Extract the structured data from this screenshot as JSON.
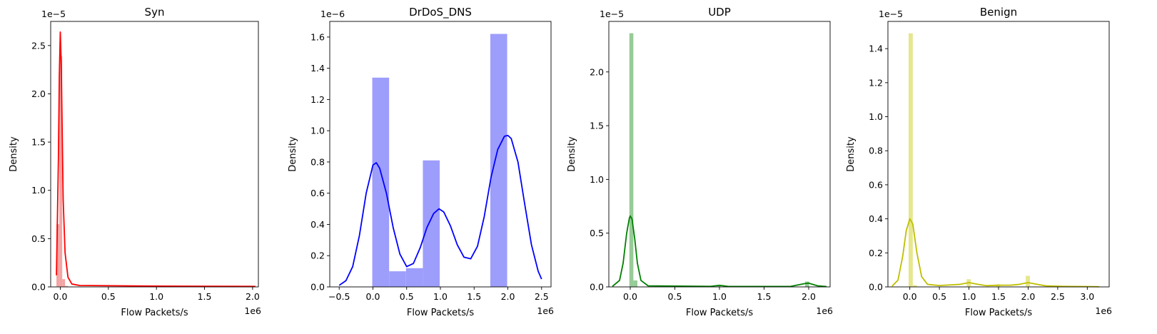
{
  "chart_data": [
    {
      "type": "histogram",
      "title": "Syn",
      "xlabel": "Flow Packets/s",
      "ylabel": "Density",
      "x_offset_label": "1e6",
      "y_offset_label": "1e−5",
      "xlim": [
        -0.1,
        2.06
      ],
      "ylim": [
        0,
        2.75
      ],
      "xticks": [
        0.0,
        0.5,
        1.0,
        1.5,
        2.0
      ],
      "xtick_labels": [
        "0.0",
        "0.5",
        "1.0",
        "1.5",
        "2.0"
      ],
      "yticks": [
        0.0,
        0.5,
        1.0,
        1.5,
        2.0,
        2.5
      ],
      "ytick_labels": [
        "0.0",
        "0.5",
        "1.0",
        "1.5",
        "2.0",
        "2.5"
      ],
      "color": "#ff0000",
      "bar_color": "#f4a3a3",
      "bins": [
        {
          "x0": -0.04,
          "x1": -0.01,
          "value": 0.65
        },
        {
          "x0": -0.01,
          "x1": 0.02,
          "value": 2.39
        },
        {
          "x0": 0.02,
          "x1": 0.05,
          "value": 0.08
        },
        {
          "x0": 0.05,
          "x1": 0.08,
          "value": 0.01
        }
      ],
      "kde": [
        [
          -0.04,
          0.12
        ],
        [
          -0.02,
          1.3
        ],
        [
          -0.01,
          2.2
        ],
        [
          0.0,
          2.64
        ],
        [
          0.01,
          2.3
        ],
        [
          0.02,
          1.6
        ],
        [
          0.03,
          0.9
        ],
        [
          0.05,
          0.35
        ],
        [
          0.08,
          0.1
        ],
        [
          0.12,
          0.03
        ],
        [
          0.2,
          0.015
        ],
        [
          1.0,
          0.008
        ],
        [
          2.0,
          0.005
        ],
        [
          2.03,
          0.004
        ]
      ]
    },
    {
      "type": "histogram",
      "title": "DrDoS_DNS",
      "xlabel": "Flow Packets/s",
      "ylabel": "Density",
      "x_offset_label": "1e6",
      "y_offset_label": "1e−6",
      "xlim": [
        -0.64,
        2.64
      ],
      "ylim": [
        0,
        1.7
      ],
      "xticks": [
        -0.5,
        0.0,
        0.5,
        1.0,
        1.5,
        2.0,
        2.5
      ],
      "xtick_labels": [
        "−0.5",
        "0.0",
        "0.5",
        "1.0",
        "1.5",
        "2.0",
        "2.5"
      ],
      "yticks": [
        0.0,
        0.2,
        0.4,
        0.6,
        0.8,
        1.0,
        1.2,
        1.4,
        1.6
      ],
      "ytick_labels": [
        "0.0",
        "0.2",
        "0.4",
        "0.6",
        "0.8",
        "1.0",
        "1.2",
        "1.4",
        "1.6"
      ],
      "color": "#0000ff",
      "bar_color": "#9d9dfc",
      "bins": [
        {
          "x0": -0.01,
          "x1": 0.24,
          "value": 1.34
        },
        {
          "x0": 0.24,
          "x1": 0.49,
          "value": 0.1
        },
        {
          "x0": 0.49,
          "x1": 0.74,
          "value": 0.12
        },
        {
          "x0": 0.74,
          "x1": 0.99,
          "value": 0.81
        },
        {
          "x0": 1.74,
          "x1": 1.99,
          "value": 1.62
        }
      ],
      "kde": [
        [
          -0.5,
          0.01
        ],
        [
          -0.4,
          0.04
        ],
        [
          -0.3,
          0.13
        ],
        [
          -0.2,
          0.33
        ],
        [
          -0.1,
          0.6
        ],
        [
          0.0,
          0.78
        ],
        [
          0.05,
          0.795
        ],
        [
          0.1,
          0.76
        ],
        [
          0.2,
          0.6
        ],
        [
          0.3,
          0.38
        ],
        [
          0.4,
          0.21
        ],
        [
          0.5,
          0.13
        ],
        [
          0.6,
          0.15
        ],
        [
          0.7,
          0.25
        ],
        [
          0.8,
          0.38
        ],
        [
          0.9,
          0.47
        ],
        [
          0.98,
          0.5
        ],
        [
          1.05,
          0.48
        ],
        [
          1.15,
          0.39
        ],
        [
          1.25,
          0.27
        ],
        [
          1.35,
          0.19
        ],
        [
          1.45,
          0.18
        ],
        [
          1.55,
          0.26
        ],
        [
          1.65,
          0.45
        ],
        [
          1.75,
          0.7
        ],
        [
          1.85,
          0.88
        ],
        [
          1.95,
          0.965
        ],
        [
          2.0,
          0.97
        ],
        [
          2.05,
          0.95
        ],
        [
          2.15,
          0.8
        ],
        [
          2.25,
          0.53
        ],
        [
          2.35,
          0.27
        ],
        [
          2.45,
          0.1
        ],
        [
          2.5,
          0.05
        ]
      ]
    },
    {
      "type": "histogram",
      "title": "UDP",
      "xlabel": "Flow Packets/s",
      "ylabel": "Density",
      "x_offset_label": "1e6",
      "y_offset_label": "1e−5",
      "xlim": [
        -0.24,
        2.24
      ],
      "ylim": [
        0,
        2.47
      ],
      "xticks": [
        0.0,
        0.5,
        1.0,
        1.5,
        2.0
      ],
      "xtick_labels": [
        "0.0",
        "0.5",
        "1.0",
        "1.5",
        "2.0"
      ],
      "yticks": [
        0.0,
        0.5,
        1.0,
        1.5,
        2.0
      ],
      "ytick_labels": [
        "0.0",
        "0.5",
        "1.0",
        "1.5",
        "2.0"
      ],
      "color": "#008000",
      "bar_color": "#97cb97",
      "bins": [
        {
          "x0": -0.01,
          "x1": 0.035,
          "value": 2.36
        },
        {
          "x0": 0.035,
          "x1": 0.08,
          "value": 0.06
        },
        {
          "x0": 0.97,
          "x1": 1.015,
          "value": 0.01
        },
        {
          "x0": 1.96,
          "x1": 2.005,
          "value": 0.05
        }
      ],
      "kde": [
        [
          -0.2,
          0.005
        ],
        [
          -0.12,
          0.06
        ],
        [
          -0.08,
          0.22
        ],
        [
          -0.04,
          0.5
        ],
        [
          -0.01,
          0.64
        ],
        [
          0.0,
          0.66
        ],
        [
          0.02,
          0.63
        ],
        [
          0.05,
          0.45
        ],
        [
          0.08,
          0.22
        ],
        [
          0.12,
          0.06
        ],
        [
          0.2,
          0.01
        ],
        [
          0.9,
          0.005
        ],
        [
          1.0,
          0.015
        ],
        [
          1.1,
          0.004
        ],
        [
          1.8,
          0.005
        ],
        [
          1.95,
          0.03
        ],
        [
          2.0,
          0.035
        ],
        [
          2.1,
          0.01
        ],
        [
          2.2,
          0.003
        ]
      ]
    },
    {
      "type": "histogram",
      "title": "Benign",
      "xlabel": "Flow Packets/s",
      "ylabel": "Density",
      "x_offset_label": "1e6",
      "y_offset_label": "1e−5",
      "xlim": [
        -0.37,
        3.37
      ],
      "ylim": [
        0,
        1.56
      ],
      "xticks": [
        0.0,
        0.5,
        1.0,
        1.5,
        2.0,
        2.5,
        3.0
      ],
      "xtick_labels": [
        "0.0",
        "0.5",
        "1.0",
        "1.5",
        "2.0",
        "2.5",
        "3.0"
      ],
      "yticks": [
        0.0,
        0.2,
        0.4,
        0.6,
        0.8,
        1.0,
        1.2,
        1.4
      ],
      "ytick_labels": [
        "0.0",
        "0.2",
        "0.4",
        "0.6",
        "0.8",
        "1.0",
        "1.2",
        "1.4"
      ],
      "color": "#bfbf00",
      "bar_color": "#e6e68c",
      "bins": [
        {
          "x0": -0.02,
          "x1": 0.05,
          "value": 1.49
        },
        {
          "x0": 0.05,
          "x1": 0.12,
          "value": 0.01
        },
        {
          "x0": 0.96,
          "x1": 1.03,
          "value": 0.045
        },
        {
          "x0": 1.46,
          "x1": 1.53,
          "value": 0.015
        },
        {
          "x0": 1.96,
          "x1": 2.03,
          "value": 0.065
        }
      ],
      "kde": [
        [
          -0.3,
          0.004
        ],
        [
          -0.2,
          0.04
        ],
        [
          -0.12,
          0.18
        ],
        [
          -0.06,
          0.33
        ],
        [
          0.0,
          0.4
        ],
        [
          0.05,
          0.37
        ],
        [
          0.12,
          0.2
        ],
        [
          0.2,
          0.06
        ],
        [
          0.3,
          0.015
        ],
        [
          0.5,
          0.008
        ],
        [
          0.7,
          0.012
        ],
        [
          0.85,
          0.015
        ],
        [
          1.0,
          0.025
        ],
        [
          1.15,
          0.015
        ],
        [
          1.3,
          0.007
        ],
        [
          1.5,
          0.01
        ],
        [
          1.7,
          0.01
        ],
        [
          1.85,
          0.015
        ],
        [
          2.0,
          0.025
        ],
        [
          2.15,
          0.015
        ],
        [
          2.3,
          0.006
        ],
        [
          2.6,
          0.003
        ],
        [
          3.0,
          0.002
        ],
        [
          3.2,
          0.001
        ]
      ]
    }
  ]
}
